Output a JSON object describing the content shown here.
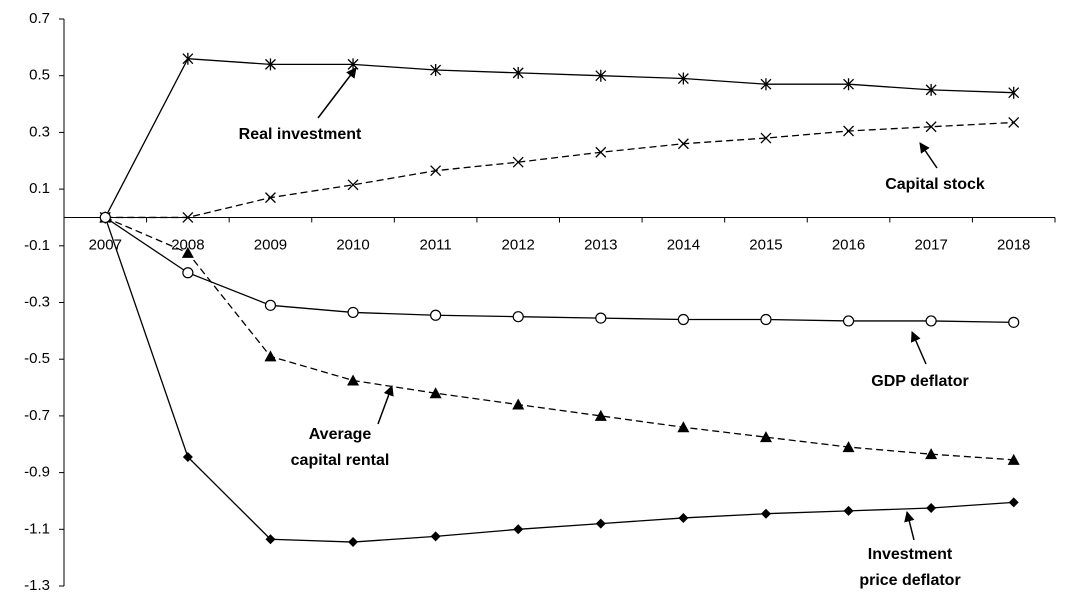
{
  "chart_data": {
    "type": "line",
    "categories": [
      "2007",
      "2008",
      "2009",
      "2010",
      "2011",
      "2012",
      "2013",
      "2014",
      "2015",
      "2016",
      "2017",
      "2018"
    ],
    "ylim": [
      -1.3,
      0.7
    ],
    "yticks": [
      -1.3,
      -1.1,
      -0.9,
      -0.7,
      -0.5,
      -0.3,
      -0.1,
      0.1,
      0.3,
      0.5,
      0.7
    ],
    "grid": false,
    "series": [
      {
        "name": "Real investment",
        "color": "#000000",
        "marker": "asterisk",
        "dashed": false,
        "values": [
          0,
          0.56,
          0.54,
          0.54,
          0.52,
          0.51,
          0.5,
          0.49,
          0.47,
          0.47,
          0.45,
          0.44
        ]
      },
      {
        "name": "Capital stock",
        "color": "#000000",
        "marker": "x",
        "dashed": true,
        "values": [
          0,
          0,
          0.07,
          0.115,
          0.165,
          0.195,
          0.23,
          0.26,
          0.28,
          0.305,
          0.32,
          0.335
        ]
      },
      {
        "name": "Average capital rental",
        "color": "#000000",
        "marker": "triangle",
        "dashed": true,
        "values": [
          0,
          -0.125,
          -0.49,
          -0.575,
          -0.62,
          -0.66,
          -0.7,
          -0.74,
          -0.775,
          -0.81,
          -0.835,
          -0.855
        ]
      },
      {
        "name": "Investment price deflator",
        "color": "#000000",
        "marker": "diamond",
        "dashed": false,
        "values": [
          0,
          -0.845,
          -1.135,
          -1.145,
          -1.125,
          -1.1,
          -1.08,
          -1.06,
          -1.045,
          -1.035,
          -1.025,
          -1.005
        ]
      },
      {
        "name": "GDP deflator",
        "color": "#000000",
        "marker": "circle",
        "dashed": false,
        "values": [
          0,
          -0.195,
          -0.31,
          -0.335,
          -0.345,
          -0.35,
          -0.355,
          -0.36,
          -0.36,
          -0.365,
          -0.365,
          -0.37
        ]
      }
    ],
    "annotations": [
      {
        "lines": [
          "Real investment"
        ]
      },
      {
        "lines": [
          "Capital stock"
        ]
      },
      {
        "lines": [
          "Average",
          "capital rental"
        ]
      },
      {
        "lines": [
          "Investment",
          "price deflator"
        ]
      },
      {
        "lines": [
          "GDP deflator"
        ]
      }
    ]
  }
}
